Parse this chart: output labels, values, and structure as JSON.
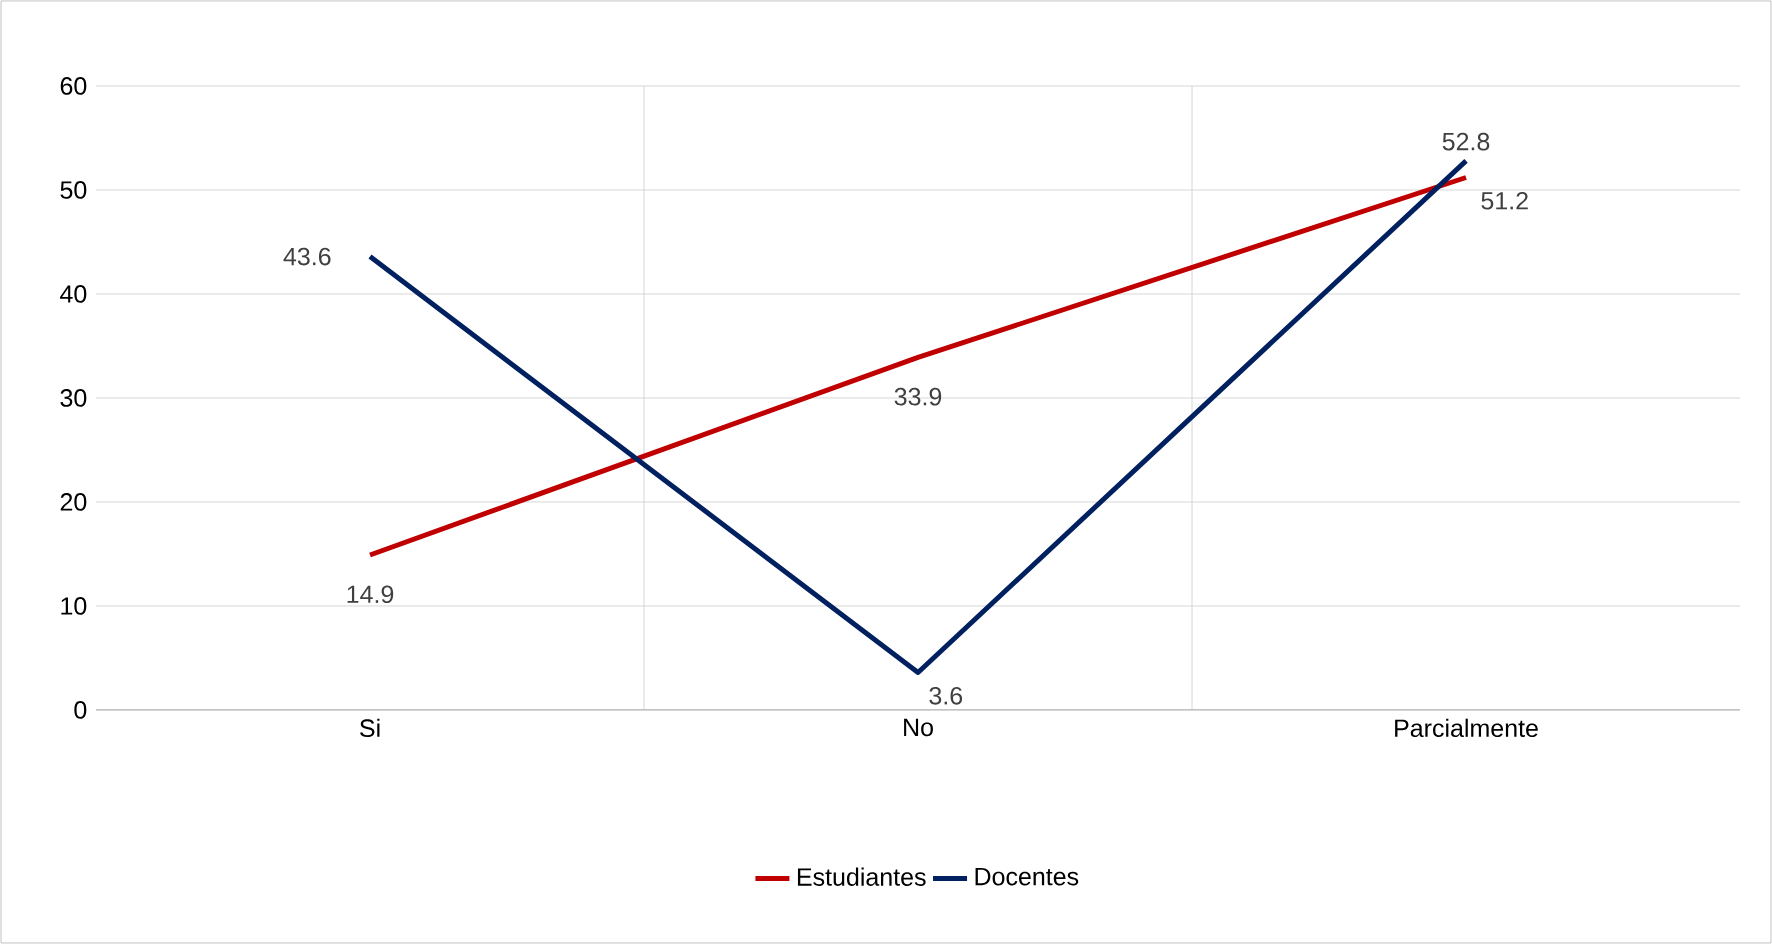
{
  "chart_data": {
    "type": "line",
    "categories": [
      "Si",
      "No",
      "Parcialmente"
    ],
    "series": [
      {
        "name": "Estudiantes",
        "color": "#c00000",
        "values": [
          14.9,
          33.9,
          51.2
        ]
      },
      {
        "name": "Docentes",
        "color": "#002060",
        "values": [
          43.6,
          3.6,
          52.8
        ]
      }
    ],
    "ylim": [
      0,
      60
    ],
    "yticks": [
      0,
      10,
      20,
      30,
      40,
      50,
      60
    ],
    "grid": true,
    "legend": "bottom",
    "data_labels": true,
    "marker": "none"
  }
}
